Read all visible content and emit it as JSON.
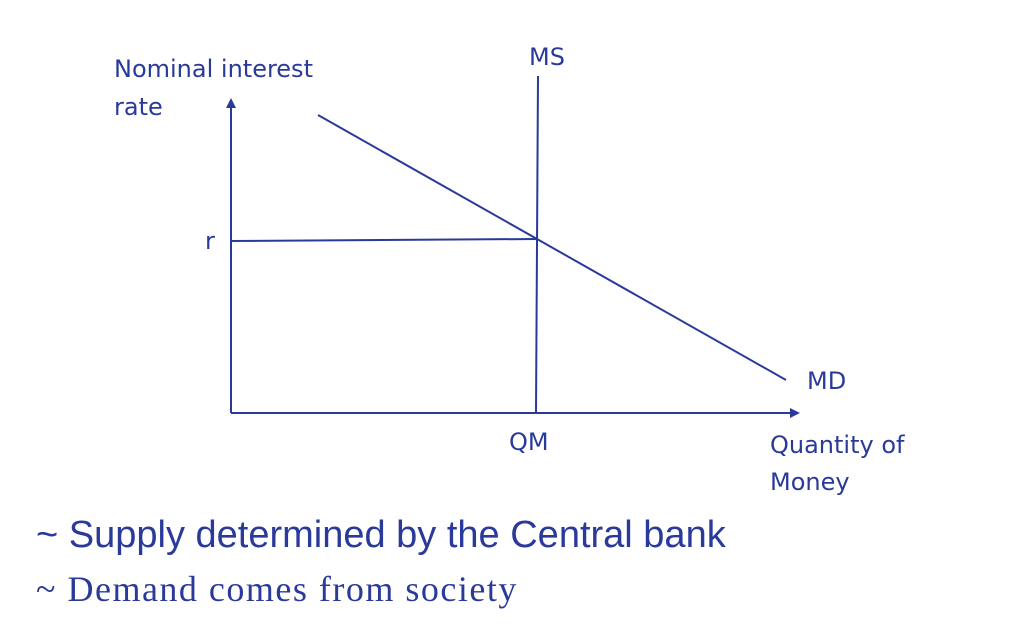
{
  "diagram": {
    "y_axis_label_line1": "Nominal interest",
    "y_axis_label_line2": "rate",
    "x_axis_label_line1": "Quantity of",
    "x_axis_label_line2": "Money",
    "supply_label": "MS",
    "demand_label": "MD",
    "rate_tick_label": "r",
    "quantity_tick_label": "QM",
    "line_color": "#2a3a9a"
  },
  "notes": {
    "supply_note": "~ Supply determined by the Central bank",
    "demand_note": "~ Demand comes from society"
  }
}
